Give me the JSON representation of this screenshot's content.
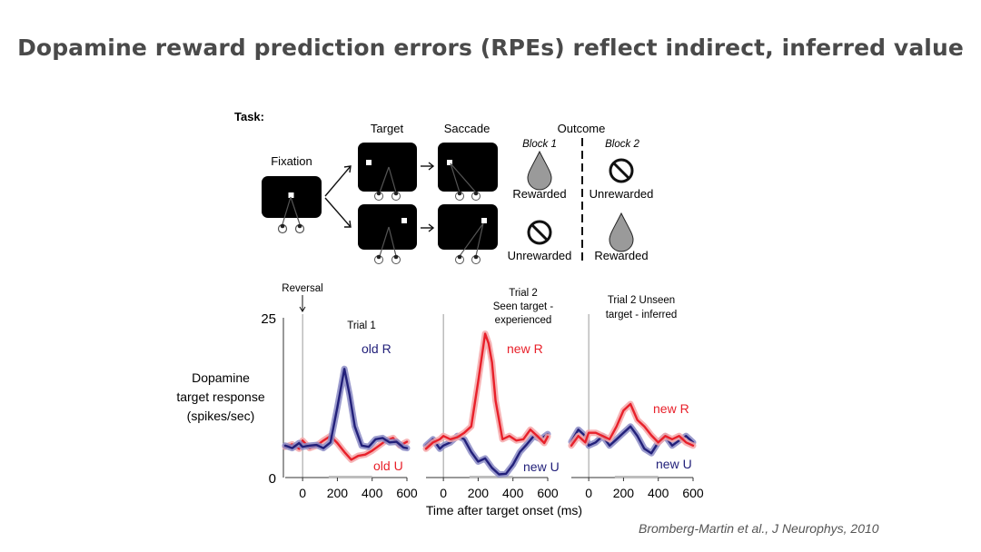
{
  "slide": {
    "title": "Dopamine reward prediction errors (RPEs) reflect indirect, inferred value",
    "citation": "Bromberg-Martin et al.,  J Neurophys, 2010"
  },
  "task": {
    "label": "Task:",
    "fixation": "Fixation",
    "target": "Target",
    "saccade": "Saccade",
    "outcome": "Outcome",
    "block1": "Block 1",
    "block2": "Block 2",
    "top_block1": "Rewarded",
    "top_block2": "Unrewarded",
    "bottom_block1": "Unrewarded",
    "bottom_block2": "Rewarded"
  },
  "figure": {
    "reversal": "Reversal",
    "ylabel_line1": "Dopamine",
    "ylabel_line2": "target response",
    "ylabel_line3": "(spikes/sec)",
    "xlabel": "Time after target onset (ms)",
    "ytick_top": "25",
    "ytick_bottom": "0",
    "panel1_title": "Trial 1",
    "panel2_title_line1": "Trial 2",
    "panel2_title_line2": "Seen target -",
    "panel2_title_line3": "experienced",
    "panel3_title_line1": "Trial 2 Unseen",
    "panel3_title_line2": "target - inferred",
    "panel1_blue": "old R",
    "panel1_red": "old U",
    "panel2_red": "new R",
    "panel2_blue": "new U",
    "panel3_red": "new R",
    "panel3_blue": "new U"
  },
  "colors": {
    "red": "#e8202a",
    "blue": "#22207a",
    "redBand": "#f4a6a8",
    "blueBand": "#8a8ac4"
  },
  "chart_data": {
    "type": "line",
    "ylabel": "Dopamine target response (spikes/sec)",
    "xlabel": "Time after target onset (ms)",
    "ylim": [
      0,
      25
    ],
    "xlim": [
      -100,
      600
    ],
    "xticks": [
      0,
      200,
      400,
      600
    ],
    "panels": [
      {
        "title": "Trial 1",
        "series": [
          {
            "name": "old R",
            "color": "blue",
            "x": [
              -100,
              -60,
              -20,
              0,
              40,
              80,
              120,
              160,
              200,
              240,
              270,
              300,
              340,
              380,
              420,
              460,
              500,
              540,
              580,
              600
            ],
            "y": [
              5,
              4.6,
              5.4,
              4.8,
              5,
              5.1,
              4.6,
              5.5,
              11,
              17,
              13,
              8,
              5,
              4.8,
              6,
              6.2,
              5.5,
              5.6,
              4.7,
              4.6
            ]
          },
          {
            "name": "old U",
            "color": "red",
            "x": [
              -100,
              -60,
              -20,
              0,
              40,
              80,
              120,
              160,
              200,
              240,
              280,
              320,
              360,
              400,
              440,
              480,
              520,
              560,
              600
            ],
            "y": [
              4.8,
              5.2,
              4.5,
              5.8,
              4.6,
              5,
              5.8,
              6.5,
              5.4,
              4,
              2.8,
              3.4,
              3.6,
              4.2,
              5,
              5.8,
              6.2,
              5,
              5.6
            ]
          }
        ]
      },
      {
        "title": "Trial 2 Seen target - experienced",
        "series": [
          {
            "name": "new R",
            "color": "red",
            "x": [
              -100,
              -60,
              -20,
              0,
              40,
              80,
              120,
              160,
              200,
              240,
              260,
              280,
              300,
              340,
              380,
              420,
              460,
              500,
              540,
              580,
              600
            ],
            "y": [
              4.5,
              5.5,
              6,
              6.5,
              6,
              6.3,
              7,
              8,
              15,
              22.5,
              21,
              18,
              12,
              6,
              6.5,
              5.8,
              6,
              7.5,
              6.5,
              5.4,
              6.4
            ]
          },
          {
            "name": "new U",
            "color": "blue",
            "x": [
              -100,
              -60,
              -20,
              0,
              40,
              80,
              120,
              160,
              200,
              240,
              280,
              320,
              360,
              400,
              440,
              480,
              520,
              560,
              600
            ],
            "y": [
              5,
              6,
              4.5,
              5,
              5.5,
              6.5,
              6,
              4,
              2.5,
              3,
              1.5,
              0.5,
              0.6,
              2,
              4,
              5.2,
              6.5,
              6,
              6.8
            ]
          }
        ]
      },
      {
        "title": "Trial 2 Unseen target - inferred",
        "series": [
          {
            "name": "new R",
            "color": "red",
            "x": [
              -100,
              -60,
              -20,
              0,
              40,
              80,
              120,
              160,
              200,
              240,
              280,
              320,
              360,
              400,
              440,
              480,
              520,
              560,
              600
            ],
            "y": [
              5,
              6.5,
              5.5,
              7,
              7,
              6.5,
              6,
              8,
              10.5,
              11.5,
              9,
              8,
              6.6,
              5.5,
              6.5,
              6,
              6.5,
              5.5,
              5
            ]
          },
          {
            "name": "new U",
            "color": "blue",
            "x": [
              -100,
              -60,
              -20,
              0,
              40,
              80,
              120,
              160,
              200,
              240,
              280,
              320,
              360,
              400,
              440,
              480,
              520,
              560,
              600
            ],
            "y": [
              5.6,
              7.5,
              6.5,
              5,
              5.5,
              6.5,
              5,
              6,
              7,
              8,
              6.5,
              4.5,
              3.8,
              5.5,
              6.5,
              5,
              5.8,
              6.5,
              5.5
            ]
          }
        ]
      }
    ]
  }
}
